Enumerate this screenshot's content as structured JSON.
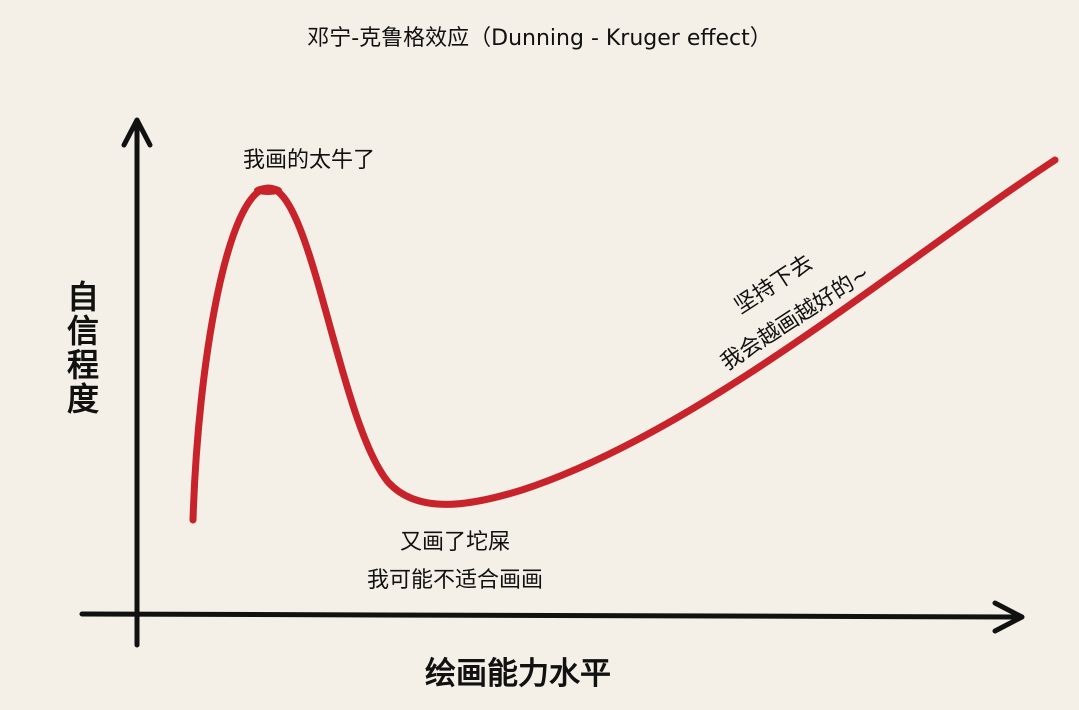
{
  "title": "邓宁-克鲁格效应（Dunning - Kruger effect）",
  "y_axis_label": "自信程度",
  "x_axis_label": "绘画能力水平",
  "annotations": [
    {
      "lines": [
        "我画的太牛了"
      ]
    },
    {
      "lines": [
        "又画了坨屎",
        "我可能不适合画画"
      ]
    },
    {
      "lines": [
        "坚持下去",
        "我会越画越好的~"
      ]
    }
  ]
}
